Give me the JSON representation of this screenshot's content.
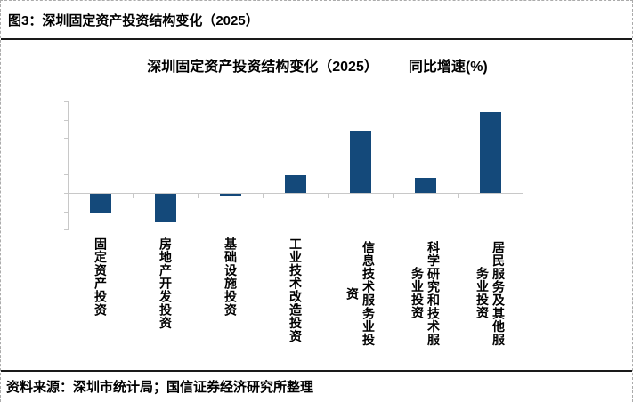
{
  "figure": {
    "caption": "图3：深圳固定资产投资结构变化（2025）",
    "source_note": "资料来源：深圳市统计局；国信证券经济研究所整理"
  },
  "chart_data": {
    "type": "bar",
    "title": "深圳固定资产投资结构变化（2025）",
    "unit_label": "同比增速(%)",
    "categories": [
      "固定资产投资",
      "房地产开发投资",
      "基础设施投资",
      "工业技术改造投资",
      "信息技术服务业投资",
      "科学研究和技术服务业投资",
      "居民服务及其他服务业投资"
    ],
    "values": [
      -21.7,
      -31.1,
      -1.9,
      19.2,
      67.7,
      16.1,
      88.3
    ],
    "data_labels": [
      "-21.7",
      "-31.1",
      "-1.9",
      "19.2",
      "67.7",
      "16.1",
      "88.3"
    ],
    "ylabel": "",
    "xlabel": "",
    "ylim": [
      -40,
      100
    ],
    "yticks": [
      100,
      80,
      60,
      40,
      20,
      0,
      -20,
      -40
    ],
    "grid": false,
    "legend": "none",
    "bar_color": "#14497a",
    "axis_color": "#c8c8c8"
  }
}
